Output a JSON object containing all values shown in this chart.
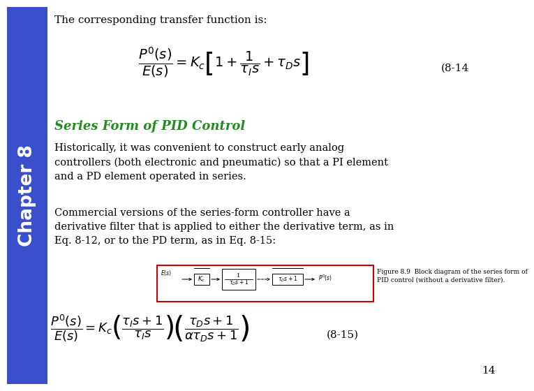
{
  "bg_color": "#ffffff",
  "sidebar_color": "#3a4fcc",
  "sidebar_text": "Chapter 8",
  "sidebar_text_color": "#ffffff",
  "title_text": "The corresponding transfer function is:",
  "title_color": "#000000",
  "eq1_label": "(8-14",
  "section_title": "Series Form of PID Control",
  "section_title_color": "#228B22",
  "para1": "Historically, it was convenient to construct early analog\ncontrollers (both electronic and pneumatic) so that a PI element\nand a PD element operated in series.",
  "para2": "Commercial versions of the series-form controller have a\nderivative filter that is applied to either the derivative term, as in\nEq. 8-12, or to the PD term, as in Eq. 8-15:",
  "eq2_label": "(8-15)",
  "page_number": "14",
  "body_text_color": "#000000",
  "body_fontsize": 10.5,
  "fig_caption": "Figure 8.9  Block diagram of the series form of\nPID control (without a derivative filter)."
}
